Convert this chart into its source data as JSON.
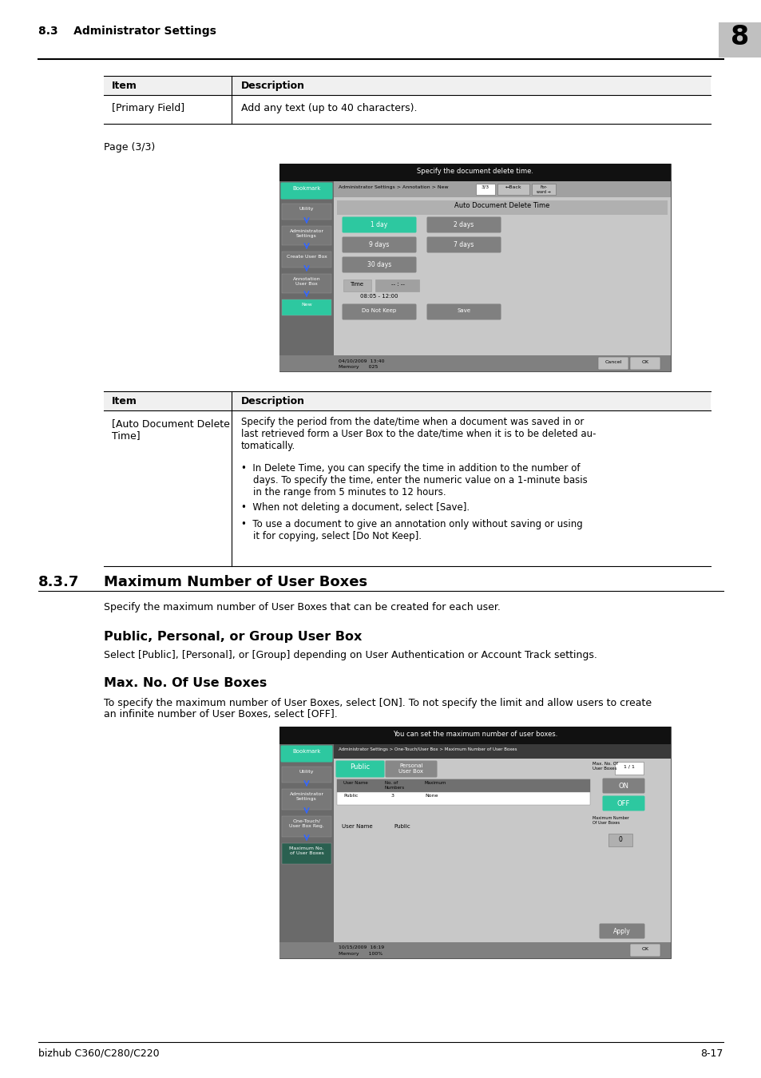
{
  "page_width": 9.54,
  "page_height": 13.5,
  "bg_color": "#ffffff",
  "header_section": "8.3    Administrator Settings",
  "header_number": "8",
  "footer_left": "bizhub C360/C280/C220",
  "footer_right": "8-17",
  "table1_headers": [
    "Item",
    "Description"
  ],
  "table1_rows": [
    [
      "[Primary Field]",
      "Add any text (up to 40 characters)."
    ]
  ],
  "page_label": "Page (3/3)",
  "section_number": "8.3.7",
  "section_title": "Maximum Number of User Boxes",
  "section_intro": "Specify the maximum number of User Boxes that can be created for each user.",
  "subsection1_title": "Public, Personal, or Group User Box",
  "subsection1_text": "Select [Public], [Personal], or [Group] depending on User Authentication or Account Track settings.",
  "subsection2_title": "Max. No. Of Use Boxes",
  "subsection2_text1": "To specify the maximum number of User Boxes, select [ON]. To not specify the limit and allow users to create",
  "subsection2_text2": "an infinite number of User Boxes, select [OFF].",
  "table2_headers": [
    "Item",
    "Description"
  ],
  "table2_row_item": "[Auto Document Delete\nTime]",
  "teal_btn_color": "#2dc8a0",
  "teal_btn_color2": "#2dc8a0",
  "dark_bg": "#111111",
  "medium_gray": "#888888",
  "light_gray": "#d0d0d0",
  "sidebar_gray": "#505050",
  "btn_gray": "#787878",
  "nav_gray": "#909090",
  "content_gray": "#c8c8c8",
  "screen_border": "#444444",
  "off_btn_teal": "#2dc8a0"
}
